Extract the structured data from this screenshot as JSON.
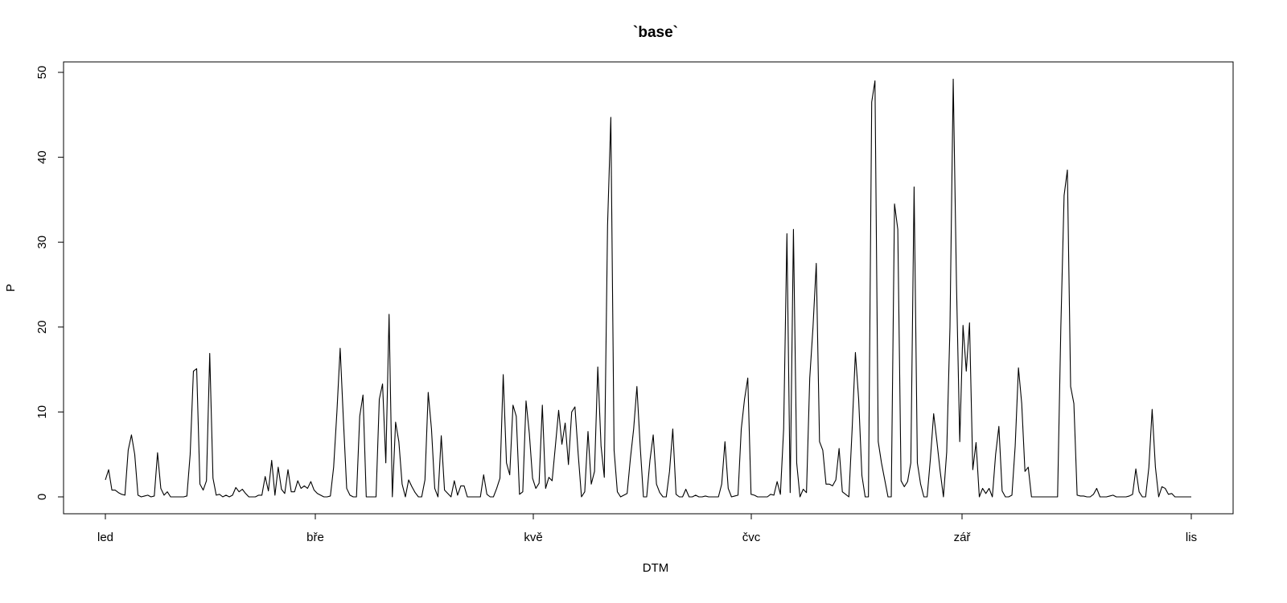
{
  "chart_data": {
    "type": "line",
    "title": "`base`",
    "xlabel": "DTM",
    "ylabel": "P",
    "x_ticks": [
      "led",
      "bře",
      "kvě",
      "čvc",
      "zář",
      "lis"
    ],
    "y_ticks": [
      "0",
      "10",
      "20",
      "30",
      "40",
      "50"
    ],
    "ylim": [
      -2,
      51
    ],
    "grid": false,
    "legend": "none",
    "line_color": "#000000",
    "series": [
      {
        "values": [
          2.0,
          3.2,
          0.8,
          0.8,
          0.5,
          0.3,
          0.2,
          5.5,
          7.3,
          5.0,
          0.2,
          0.0,
          0.1,
          0.2,
          0.0,
          0.1,
          5.2,
          1.0,
          0.2,
          0.6,
          0.0,
          0.0,
          0.0,
          0.0,
          0.0,
          0.1,
          5.0,
          14.8,
          15.1,
          1.5,
          0.8,
          1.9,
          16.9,
          2.2,
          0.2,
          0.3,
          0.0,
          0.2,
          0.0,
          0.2,
          1.1,
          0.6,
          0.9,
          0.4,
          0.0,
          0.0,
          0.0,
          0.2,
          0.2,
          2.4,
          0.7,
          4.3,
          0.2,
          3.5,
          0.9,
          0.4,
          3.2,
          0.6,
          0.6,
          1.9,
          1.0,
          1.3,
          1.0,
          1.8,
          0.8,
          0.4,
          0.2,
          0.0,
          0.0,
          0.1,
          3.5,
          10.0,
          17.5,
          9.0,
          1.0,
          0.2,
          0.0,
          0.0,
          9.5,
          12.0,
          0.0,
          0.0,
          0.0,
          0.0,
          11.5,
          13.3,
          4.0,
          21.5,
          0.0,
          8.8,
          6.5,
          1.5,
          0.0,
          2.0,
          1.2,
          0.5,
          0.0,
          0.0,
          2.0,
          12.3,
          8.0,
          1.0,
          0.0,
          7.2,
          0.8,
          0.4,
          0.0,
          1.9,
          0.2,
          1.3,
          1.3,
          0.0,
          0.0,
          0.0,
          0.0,
          0.0,
          2.6,
          0.3,
          0.0,
          0.0,
          1.0,
          2.2,
          14.4,
          4.0,
          2.6,
          10.8,
          9.5,
          0.3,
          0.6,
          11.3,
          7.5,
          2.2,
          1.0,
          1.6,
          10.8,
          1.0,
          2.3,
          1.9,
          6.0,
          10.2,
          6.2,
          8.7,
          3.8,
          10.0,
          10.6,
          5.0,
          0.0,
          0.6,
          7.7,
          1.5,
          3.0,
          15.3,
          6.0,
          2.3,
          32.0,
          44.7,
          5.5,
          0.6,
          0.0,
          0.2,
          0.4,
          4.5,
          8.0,
          13.0,
          6.0,
          0.0,
          0.0,
          4.3,
          7.3,
          1.5,
          0.5,
          0.0,
          0.0,
          3.0,
          8.0,
          0.3,
          0.0,
          0.0,
          0.9,
          0.0,
          0.0,
          0.2,
          0.0,
          0.0,
          0.1,
          0.0,
          0.0,
          0.0,
          0.0,
          1.5,
          6.5,
          1.0,
          0.0,
          0.1,
          0.2,
          8.0,
          11.5,
          14.0,
          0.3,
          0.2,
          0.0,
          0.0,
          0.0,
          0.0,
          0.3,
          0.2,
          1.8,
          0.3,
          8.0,
          31.0,
          0.5,
          31.5,
          4.0,
          0.0,
          0.9,
          0.5,
          14.0,
          20.0,
          27.5,
          6.5,
          5.5,
          1.5,
          1.5,
          1.3,
          2.0,
          5.7,
          0.6,
          0.3,
          0.0,
          8.0,
          17.0,
          11.5,
          2.5,
          0.0,
          0.0,
          46.5,
          49.0,
          6.5,
          4.0,
          2.0,
          0.0,
          0.0,
          34.5,
          31.5,
          1.9,
          1.2,
          1.8,
          4.0,
          36.5,
          4.0,
          1.5,
          0.0,
          0.0,
          4.5,
          9.8,
          6.5,
          3.0,
          0.0,
          5.3,
          20.0,
          49.2,
          25.0,
          6.5,
          20.2,
          14.8,
          20.5,
          3.2,
          6.4,
          0.0,
          1.0,
          0.4,
          1.0,
          0.0,
          5.0,
          8.3,
          0.7,
          0.0,
          0.0,
          0.2,
          6.0,
          15.2,
          11.0,
          3.0,
          3.5,
          0.0,
          0.0,
          0.0,
          0.0,
          0.0,
          0.0,
          0.0,
          0.0,
          0.0,
          20.0,
          35.5,
          38.5,
          13.0,
          11.0,
          0.2,
          0.1,
          0.1,
          0.0,
          0.0,
          0.3,
          1.0,
          0.0,
          0.0,
          0.0,
          0.1,
          0.2,
          0.0,
          0.0,
          0.0,
          0.0,
          0.1,
          0.3,
          3.3,
          0.6,
          0.0,
          0.0,
          3.5,
          10.3,
          3.5,
          0.0,
          1.2,
          1.0,
          0.3,
          0.4,
          0.0,
          0.0,
          0.0,
          0.0,
          0.0,
          0.0
        ]
      }
    ]
  }
}
